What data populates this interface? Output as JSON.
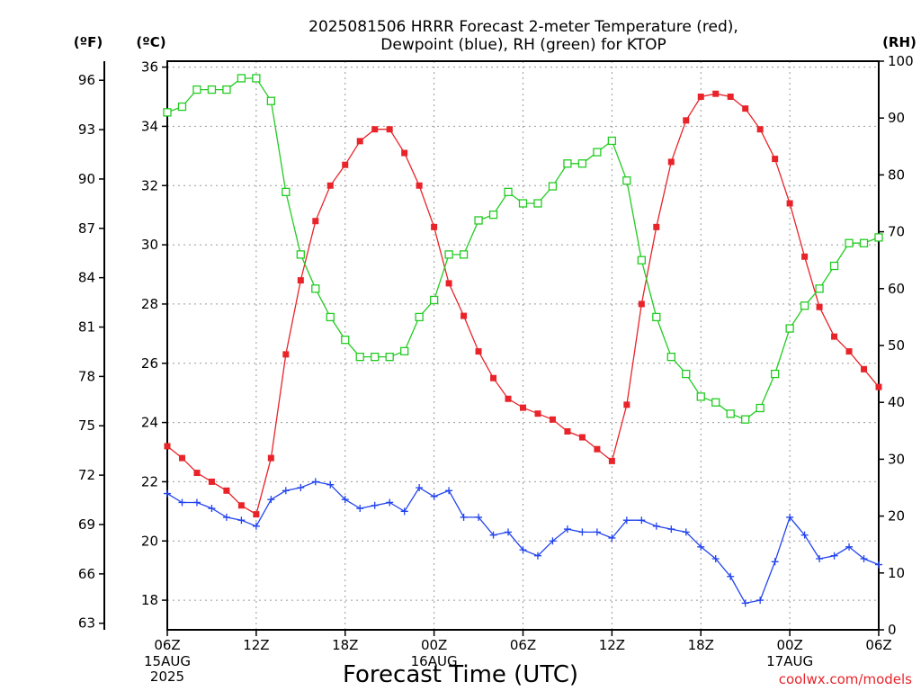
{
  "chart_data": {
    "type": "line",
    "title_lines": [
      "2025081506 HRRR Forecast 2-meter Temperature (red),",
      "Dewpoint (blue), RH (green) for KTOP"
    ],
    "xlabel": "Forecast Time (UTC)",
    "left_unit_f": "(ºF)",
    "left_unit_c": "(ºC)",
    "right_unit": "(RH)",
    "x_range_hours": [
      0,
      48
    ],
    "x_ticks": [
      {
        "hour": 0,
        "label": "06Z",
        "sub1": "15AUG",
        "sub2": "2025"
      },
      {
        "hour": 6,
        "label": "12Z",
        "sub1": "",
        "sub2": ""
      },
      {
        "hour": 12,
        "label": "18Z",
        "sub1": "",
        "sub2": ""
      },
      {
        "hour": 18,
        "label": "00Z",
        "sub1": "16AUG",
        "sub2": ""
      },
      {
        "hour": 24,
        "label": "06Z",
        "sub1": "",
        "sub2": ""
      },
      {
        "hour": 30,
        "label": "12Z",
        "sub1": "",
        "sub2": ""
      },
      {
        "hour": 36,
        "label": "18Z",
        "sub1": "",
        "sub2": ""
      },
      {
        "hour": 42,
        "label": "00Z",
        "sub1": "17AUG",
        "sub2": ""
      },
      {
        "hour": 48,
        "label": "06Z",
        "sub1": "",
        "sub2": ""
      }
    ],
    "celsius_axis": {
      "range": [
        17.0,
        36.2
      ],
      "ticks": [
        "18",
        "20",
        "22",
        "24",
        "26",
        "28",
        "30",
        "32",
        "34",
        "36"
      ]
    },
    "fahrenheit_ticks": [
      "63",
      "66",
      "69",
      "72",
      "75",
      "78",
      "81",
      "84",
      "87",
      "90",
      "93",
      "96"
    ],
    "rh_axis": {
      "range": [
        0,
        100
      ],
      "ticks": [
        "0",
        "10",
        "20",
        "30",
        "40",
        "50",
        "60",
        "70",
        "80",
        "90",
        "100"
      ]
    },
    "grid": true,
    "series": [
      {
        "key": "temperature",
        "axis": "celsius",
        "color": "#e8242a",
        "marker": "filled-square",
        "values": [
          23.2,
          22.8,
          22.3,
          22.0,
          21.7,
          21.2,
          20.9,
          22.8,
          26.3,
          28.8,
          30.8,
          32.0,
          32.7,
          33.5,
          33.9,
          33.9,
          33.1,
          32.0,
          30.6,
          28.7,
          27.6,
          26.4,
          25.5,
          24.8,
          24.5,
          24.3,
          24.1,
          23.7,
          23.5,
          23.1,
          22.7,
          24.6,
          28.0,
          30.6,
          32.8,
          34.2,
          35.0,
          35.1,
          35.0,
          34.6,
          33.9,
          32.9,
          31.4,
          29.6,
          27.9,
          26.9,
          26.4,
          25.8,
          25.2
        ]
      },
      {
        "key": "dewpoint",
        "axis": "celsius",
        "color": "#2244ee",
        "marker": "plus",
        "values": [
          21.6,
          21.3,
          21.3,
          21.1,
          20.8,
          20.7,
          20.5,
          21.4,
          21.7,
          21.8,
          22.0,
          21.9,
          21.4,
          21.1,
          21.2,
          21.3,
          21.0,
          21.8,
          21.5,
          21.7,
          20.8,
          20.8,
          20.2,
          20.3,
          19.7,
          19.5,
          20.0,
          20.4,
          20.3,
          20.3,
          20.1,
          20.7,
          20.7,
          20.5,
          20.4,
          20.3,
          19.8,
          19.4,
          18.8,
          17.9,
          18.0,
          19.3,
          20.8,
          20.2,
          19.4,
          19.5,
          19.8,
          19.4,
          19.2
        ]
      },
      {
        "key": "rh",
        "axis": "rh",
        "color": "#22cc22",
        "marker": "open-square",
        "values": [
          91,
          92,
          95,
          95,
          95,
          97,
          97,
          93,
          77,
          66,
          60,
          55,
          51,
          48,
          48,
          48,
          49,
          55,
          58,
          66,
          66,
          72,
          73,
          77,
          75,
          75,
          78,
          82,
          82,
          84,
          86,
          79,
          65,
          55,
          48,
          45,
          41,
          40,
          38,
          37,
          39,
          45,
          53,
          57,
          60,
          64,
          68,
          68,
          69
        ]
      }
    ]
  },
  "footer": {
    "credit": "coolwx.com/models"
  }
}
